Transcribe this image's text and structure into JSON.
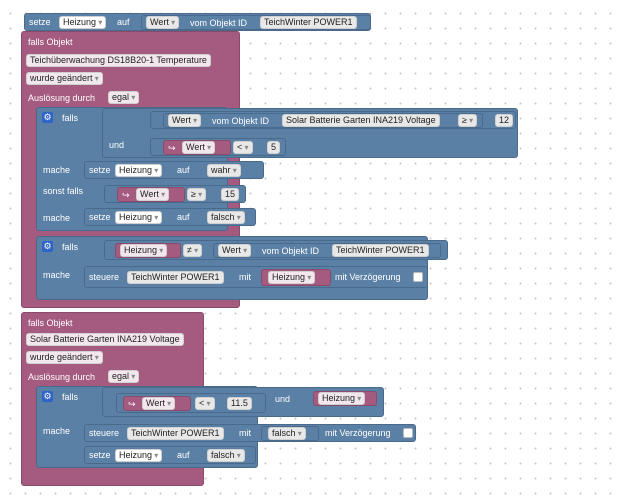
{
  "top_setze": {
    "setze": "setze",
    "var": "Heizung",
    "auf": "auf",
    "val": "Wert",
    "vom": "vom Objekt ID",
    "obj": "TeichWinter POWER1"
  },
  "ev1": {
    "falls_objekt": "falls Objekt",
    "object": "Teichüberwachung DS18B20-1  Temperature",
    "trigger": "wurde geändert",
    "ausl": "Auslösung durch",
    "ausl_val": "egal"
  },
  "if1": {
    "falls": "falls",
    "wert": "Wert",
    "vom": "vom Objekt ID",
    "obj": "Solar Batterie Garten INA219  Voltage",
    "op": "≥",
    "num": "12",
    "und": "und",
    "wert2": "Wert",
    "op2": "<",
    "num2": "5",
    "mache": "mache",
    "setze": "setze",
    "var": "Heizung",
    "auf": "auf",
    "val": "wahr",
    "sonst": "sonst falls",
    "wert3": "Wert",
    "op3": "≥",
    "num3": "15",
    "mache2": "mache",
    "setze2": "setze",
    "var2": "Heizung",
    "auf2": "auf",
    "val2": "falsch"
  },
  "if2": {
    "falls": "falls",
    "var": "Heizung",
    "op": "≠",
    "wert": "Wert",
    "vom": "vom Objekt ID",
    "obj": "TeichWinter POWER1",
    "mache": "mache",
    "steuere": "steuere",
    "obj2": "TeichWinter POWER1",
    "mit": "mit",
    "var2": "Heizung",
    "delay": "mit Verzögerung"
  },
  "ev2": {
    "falls_objekt": "falls Objekt",
    "object": "Solar Batterie Garten INA219  Voltage",
    "trigger": "wurde geändert",
    "ausl": "Auslösung durch",
    "ausl_val": "egal"
  },
  "if3": {
    "falls": "falls",
    "wert": "Wert",
    "op": "<",
    "num": "11.5",
    "und": "und",
    "var": "Heizung",
    "mache": "mache",
    "steuere": "steuere",
    "obj": "TeichWinter POWER1",
    "mit": "mit",
    "val": "falsch",
    "delay": "mit Verzögerung",
    "setze": "setze",
    "var2": "Heizung",
    "auf": "auf",
    "val2": "falsch"
  }
}
